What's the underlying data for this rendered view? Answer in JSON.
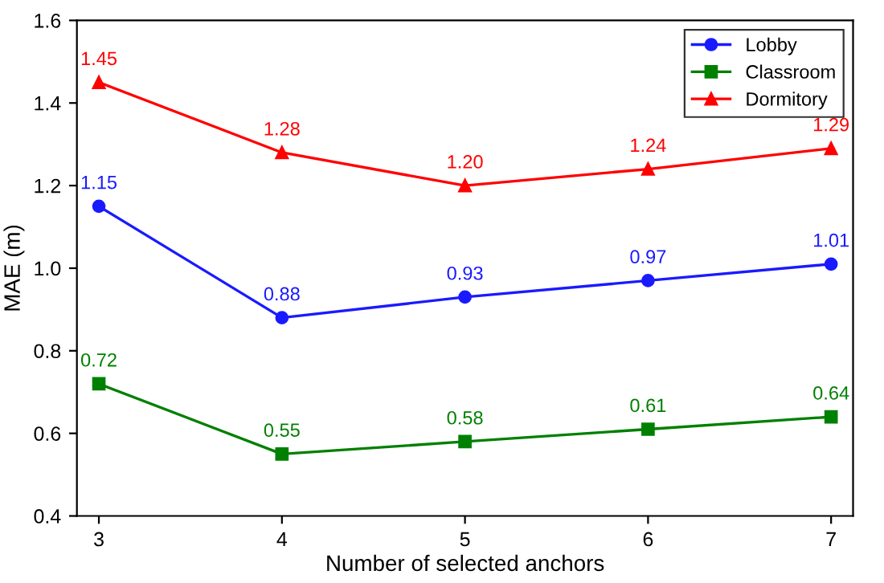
{
  "chart_data": {
    "type": "line",
    "xlabel": "Number of selected anchors",
    "ylabel": "MAE (m)",
    "x": [
      3,
      4,
      5,
      6,
      7
    ],
    "xlim": [
      2.88,
      7.12
    ],
    "xticks": [
      3,
      4,
      5,
      6,
      7
    ],
    "ylim": [
      0.4,
      1.6
    ],
    "yticks": [
      {
        "value": 0.4,
        "label": "0.4"
      },
      {
        "value": 0.6,
        "label": "0.6"
      },
      {
        "value": 0.8,
        "label": "0.8"
      },
      {
        "value": 1.0,
        "label": "1.0"
      },
      {
        "value": 1.2,
        "label": "1.2"
      },
      {
        "value": 1.4,
        "label": "1.4"
      },
      {
        "value": 1.6,
        "label": "1.6"
      }
    ],
    "grid": false,
    "legend": "top right",
    "line_style": "solid",
    "series": [
      {
        "name": "Lobby",
        "color": "#1a1aff",
        "marker": "circle",
        "values": [
          1.15,
          0.88,
          0.93,
          0.97,
          1.01
        ],
        "value_labels": [
          "1.15",
          "0.88",
          "0.93",
          "0.97",
          "1.01"
        ]
      },
      {
        "name": "Classroom",
        "color": "#008000",
        "marker": "square",
        "values": [
          0.72,
          0.55,
          0.58,
          0.61,
          0.64
        ],
        "value_labels": [
          "0.72",
          "0.55",
          "0.58",
          "0.61",
          "0.64"
        ]
      },
      {
        "name": "Dormitory",
        "color": "#ff0000",
        "marker": "triangle",
        "values": [
          1.45,
          1.28,
          1.2,
          1.24,
          1.29
        ],
        "value_labels": [
          "1.45",
          "1.28",
          "1.20",
          "1.24",
          "1.29"
        ]
      }
    ]
  }
}
